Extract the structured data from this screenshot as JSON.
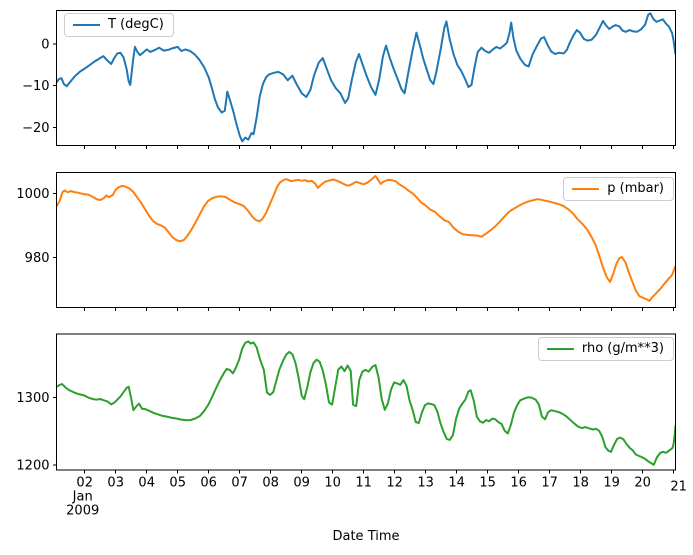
{
  "figure": {
    "background_color": "#ffffff",
    "xlabel": "Date Time"
  },
  "chart_data": {
    "type": "line",
    "title": "",
    "grid": false,
    "x_axis": {
      "label": "Date Time",
      "unit": "day of month, January 2009",
      "xlim": [
        1.09,
        21.06
      ],
      "ticks": [
        2,
        3,
        4,
        5,
        6,
        7,
        8,
        9,
        10,
        11,
        12,
        13,
        14,
        15,
        16,
        17,
        18,
        19,
        20,
        21
      ],
      "tick_labels": [
        "02",
        "03",
        "04",
        "05",
        "06",
        "07",
        "08",
        "09",
        "10",
        "11",
        "12",
        "13",
        "14",
        "15",
        "16",
        "17",
        "18",
        "19",
        "20",
        "21"
      ],
      "first_tick_sublabels": [
        "Jan",
        "2009"
      ]
    },
    "panels": [
      {
        "id": "temperature",
        "name": "T (degC)",
        "color": "#1f77b4",
        "legend_position": "upper left",
        "ylim": [
          -24.3,
          8.0
        ],
        "yticks": [
          0,
          -10,
          -20
        ],
        "ytick_labels": [
          "0",
          "−10",
          "−20"
        ],
        "x": [
          1.09,
          1.17,
          1.25,
          1.33,
          1.42,
          1.55,
          1.7,
          1.85,
          2.0,
          2.15,
          2.3,
          2.45,
          2.6,
          2.72,
          2.85,
          2.95,
          3.05,
          3.15,
          3.25,
          3.35,
          3.42,
          3.47,
          3.55,
          3.62,
          3.7,
          3.78,
          3.88,
          4.0,
          4.12,
          4.25,
          4.4,
          4.55,
          4.7,
          4.85,
          5.0,
          5.12,
          5.25,
          5.4,
          5.55,
          5.7,
          5.85,
          6.0,
          6.1,
          6.2,
          6.3,
          6.42,
          6.52,
          6.6,
          6.7,
          6.8,
          6.9,
          7.0,
          7.08,
          7.18,
          7.28,
          7.38,
          7.45,
          7.55,
          7.65,
          7.75,
          7.85,
          7.95,
          8.1,
          8.25,
          8.4,
          8.55,
          8.7,
          8.85,
          9.0,
          9.15,
          9.28,
          9.4,
          9.55,
          9.68,
          9.8,
          9.95,
          10.1,
          10.25,
          10.4,
          10.5,
          10.62,
          10.75,
          10.85,
          10.97,
          11.1,
          11.25,
          11.38,
          11.5,
          11.62,
          11.72,
          11.85,
          11.97,
          12.1,
          12.22,
          12.32,
          12.45,
          12.58,
          12.7,
          12.8,
          12.92,
          13.05,
          13.15,
          13.25,
          13.35,
          13.48,
          13.6,
          13.67,
          13.78,
          13.9,
          14.02,
          14.15,
          14.28,
          14.38,
          14.48,
          14.58,
          14.68,
          14.8,
          14.92,
          15.05,
          15.17,
          15.28,
          15.4,
          15.52,
          15.62,
          15.7,
          15.76,
          15.83,
          15.92,
          16.05,
          16.2,
          16.32,
          16.45,
          16.6,
          16.72,
          16.82,
          16.95,
          17.05,
          17.18,
          17.3,
          17.45,
          17.55,
          17.65,
          17.78,
          17.88,
          17.98,
          18.1,
          18.22,
          18.35,
          18.5,
          18.62,
          18.72,
          18.82,
          18.92,
          19.02,
          19.12,
          19.25,
          19.35,
          19.45,
          19.58,
          19.7,
          19.82,
          19.95,
          20.08,
          20.18,
          20.25,
          20.35,
          20.45,
          20.55,
          20.65,
          20.75,
          20.85,
          20.95,
          21.0,
          21.03,
          21.06
        ],
        "y": [
          -9.2,
          -8.4,
          -8.2,
          -9.6,
          -10.1,
          -8.9,
          -7.6,
          -6.6,
          -5.9,
          -5.1,
          -4.3,
          -3.6,
          -2.9,
          -3.9,
          -4.8,
          -3.4,
          -2.3,
          -2.1,
          -3.2,
          -6.0,
          -9.0,
          -9.8,
          -4.5,
          -0.7,
          -1.9,
          -2.7,
          -2.1,
          -1.3,
          -1.9,
          -1.5,
          -0.9,
          -1.6,
          -1.4,
          -1.0,
          -0.7,
          -1.7,
          -1.3,
          -1.7,
          -2.5,
          -3.8,
          -5.5,
          -8.0,
          -10.5,
          -13.2,
          -15.2,
          -16.4,
          -16.0,
          -11.4,
          -13.8,
          -16.3,
          -19.3,
          -21.9,
          -23.3,
          -22.4,
          -22.9,
          -21.3,
          -21.6,
          -17.5,
          -12.5,
          -9.6,
          -8.0,
          -7.3,
          -6.9,
          -6.7,
          -7.3,
          -8.7,
          -7.6,
          -9.8,
          -11.8,
          -12.7,
          -11.0,
          -7.5,
          -4.5,
          -3.4,
          -5.8,
          -8.7,
          -10.6,
          -11.8,
          -14.1,
          -13.0,
          -8.5,
          -4.3,
          -2.4,
          -5.0,
          -7.8,
          -10.5,
          -12.2,
          -8.5,
          -3.0,
          -0.4,
          -3.5,
          -6.0,
          -8.5,
          -10.8,
          -11.8,
          -6.5,
          -1.5,
          2.7,
          0.0,
          -3.5,
          -6.5,
          -8.7,
          -9.6,
          -6.5,
          -1.5,
          3.8,
          5.4,
          1.0,
          -2.5,
          -5.0,
          -6.5,
          -8.5,
          -10.3,
          -9.8,
          -5.5,
          -1.9,
          -0.9,
          -1.7,
          -2.1,
          -1.3,
          -0.7,
          -1.1,
          -0.4,
          0.3,
          2.5,
          5.1,
          1.5,
          -1.5,
          -3.5,
          -5.0,
          -5.4,
          -2.5,
          -0.3,
          1.3,
          1.6,
          -0.5,
          -1.8,
          -2.4,
          -2.1,
          -2.3,
          -1.5,
          0.3,
          2.2,
          3.3,
          2.7,
          1.2,
          0.8,
          1.0,
          2.2,
          4.0,
          5.5,
          4.4,
          3.6,
          4.1,
          4.5,
          4.2,
          3.2,
          2.9,
          3.3,
          3.0,
          2.9,
          3.5,
          4.6,
          7.0,
          7.3,
          5.9,
          5.3,
          5.6,
          5.9,
          4.9,
          4.1,
          2.6,
          0.8,
          -1.0,
          -2.4
        ]
      },
      {
        "id": "pressure",
        "name": "p (mbar)",
        "color": "#ff7f0e",
        "legend_position": "upper right",
        "ylim": [
          964.3,
          1006.5
        ],
        "yticks": [
          1000,
          980
        ],
        "ytick_labels": [
          "1000",
          "980"
        ],
        "x": [
          1.09,
          1.2,
          1.28,
          1.35,
          1.45,
          1.55,
          1.65,
          1.78,
          1.9,
          2.0,
          2.12,
          2.25,
          2.38,
          2.5,
          2.62,
          2.7,
          2.78,
          2.9,
          3.0,
          3.1,
          3.2,
          3.32,
          3.45,
          3.58,
          3.7,
          3.82,
          3.95,
          4.08,
          4.2,
          4.32,
          4.45,
          4.58,
          4.7,
          4.82,
          4.95,
          5.08,
          5.2,
          5.32,
          5.45,
          5.58,
          5.72,
          5.85,
          5.98,
          6.1,
          6.25,
          6.4,
          6.55,
          6.7,
          6.85,
          7.0,
          7.12,
          7.25,
          7.38,
          7.5,
          7.62,
          7.72,
          7.85,
          7.95,
          8.08,
          8.2,
          8.3,
          8.42,
          8.52,
          8.65,
          8.78,
          8.9,
          9.0,
          9.1,
          9.22,
          9.32,
          9.45,
          9.52,
          9.62,
          9.75,
          9.9,
          10.02,
          10.15,
          10.3,
          10.42,
          10.52,
          10.65,
          10.75,
          10.88,
          11.0,
          11.12,
          11.25,
          11.38,
          11.48,
          11.55,
          11.65,
          11.78,
          11.9,
          12.02,
          12.15,
          12.3,
          12.45,
          12.6,
          12.72,
          12.85,
          13.0,
          13.15,
          13.3,
          13.45,
          13.6,
          13.75,
          13.9,
          14.05,
          14.2,
          14.35,
          14.5,
          14.65,
          14.8,
          14.95,
          15.1,
          15.25,
          15.4,
          15.55,
          15.7,
          15.85,
          16.0,
          16.15,
          16.3,
          16.45,
          16.6,
          16.72,
          16.85,
          17.0,
          17.15,
          17.3,
          17.45,
          17.6,
          17.75,
          17.9,
          18.05,
          18.2,
          18.35,
          18.48,
          18.6,
          18.72,
          18.85,
          18.95,
          19.05,
          19.15,
          19.25,
          19.33,
          19.45,
          19.55,
          19.67,
          19.78,
          19.9,
          20.0,
          20.12,
          20.22,
          20.32,
          20.45,
          20.58,
          20.7,
          20.82,
          20.95,
          21.06
        ],
        "y": [
          995.8,
          997.8,
          1000.3,
          1000.9,
          1000.3,
          1000.7,
          1000.4,
          1000.2,
          999.9,
          999.7,
          999.6,
          998.9,
          998.2,
          997.9,
          998.5,
          999.3,
          998.8,
          999.4,
          1001.1,
          1001.9,
          1002.3,
          1002.1,
          1001.4,
          1000.3,
          998.6,
          997.1,
          995.0,
          992.9,
          991.4,
          990.5,
          990.0,
          989.3,
          987.9,
          986.4,
          985.4,
          985.0,
          985.4,
          986.8,
          988.7,
          991.0,
          993.6,
          995.9,
          997.6,
          998.4,
          998.9,
          999.1,
          998.8,
          997.9,
          997.1,
          996.6,
          996.1,
          994.8,
          993.0,
          991.8,
          991.2,
          991.8,
          993.8,
          996.1,
          999.0,
          1001.9,
          1003.4,
          1004.2,
          1004.4,
          1003.8,
          1004.0,
          1004.2,
          1003.9,
          1004.1,
          1003.7,
          1003.9,
          1002.9,
          1001.7,
          1002.6,
          1003.6,
          1004.0,
          1004.3,
          1003.9,
          1003.2,
          1002.6,
          1002.4,
          1003.0,
          1003.6,
          1003.2,
          1002.8,
          1003.3,
          1004.3,
          1005.4,
          1004.0,
          1002.9,
          1003.7,
          1004.2,
          1004.1,
          1003.8,
          1002.8,
          1001.9,
          1000.8,
          999.8,
          998.6,
          997.2,
          996.2,
          994.9,
          994.2,
          992.8,
          991.6,
          991.0,
          989.2,
          988.0,
          987.2,
          987.0,
          986.9,
          986.8,
          986.4,
          987.4,
          988.5,
          989.7,
          991.2,
          992.8,
          994.3,
          995.2,
          996.1,
          996.8,
          997.4,
          997.8,
          998.2,
          998.0,
          997.7,
          997.4,
          997.0,
          996.6,
          996.0,
          995.0,
          993.7,
          991.9,
          990.5,
          988.8,
          986.4,
          983.9,
          980.6,
          976.8,
          973.6,
          972.3,
          974.8,
          977.9,
          979.7,
          980.1,
          978.3,
          975.4,
          972.3,
          969.6,
          967.8,
          967.4,
          966.9,
          966.4,
          967.6,
          968.9,
          970.2,
          971.7,
          973.1,
          974.5,
          977.3
        ]
      },
      {
        "id": "density",
        "name": "rho (g/m**3)",
        "color": "#2ca02c",
        "legend_position": "upper right",
        "ylim": [
          1192.6,
          1393.5
        ],
        "yticks": [
          1300,
          1200
        ],
        "ytick_labels": [
          "1300",
          "1200"
        ],
        "x": [
          1.09,
          1.18,
          1.27,
          1.38,
          1.5,
          1.62,
          1.75,
          1.88,
          2.0,
          2.12,
          2.25,
          2.38,
          2.5,
          2.62,
          2.75,
          2.85,
          2.95,
          3.05,
          3.15,
          3.25,
          3.35,
          3.42,
          3.5,
          3.57,
          3.68,
          3.75,
          3.85,
          3.95,
          4.08,
          4.22,
          4.38,
          4.52,
          4.68,
          4.82,
          4.98,
          5.12,
          5.28,
          5.42,
          5.58,
          5.72,
          5.85,
          5.98,
          6.1,
          6.22,
          6.35,
          6.48,
          6.58,
          6.68,
          6.78,
          6.88,
          6.98,
          7.08,
          7.18,
          7.28,
          7.35,
          7.45,
          7.55,
          7.65,
          7.78,
          7.88,
          7.98,
          8.08,
          8.18,
          8.28,
          8.4,
          8.5,
          8.6,
          8.7,
          8.8,
          8.9,
          9.0,
          9.08,
          9.18,
          9.28,
          9.38,
          9.48,
          9.58,
          9.68,
          9.78,
          9.88,
          9.98,
          10.08,
          10.18,
          10.28,
          10.38,
          10.48,
          10.58,
          10.66,
          10.76,
          10.86,
          10.96,
          11.06,
          11.16,
          11.28,
          11.38,
          11.48,
          11.58,
          11.68,
          11.78,
          11.88,
          11.98,
          12.08,
          12.18,
          12.28,
          12.38,
          12.48,
          12.58,
          12.68,
          12.78,
          12.88,
          12.98,
          13.08,
          13.18,
          13.28,
          13.38,
          13.48,
          13.58,
          13.68,
          13.78,
          13.88,
          13.98,
          14.08,
          14.18,
          14.28,
          14.38,
          14.45,
          14.55,
          14.65,
          14.75,
          14.85,
          14.95,
          15.05,
          15.15,
          15.25,
          15.35,
          15.45,
          15.55,
          15.65,
          15.75,
          15.85,
          15.95,
          16.05,
          16.18,
          16.3,
          16.42,
          16.55,
          16.65,
          16.75,
          16.85,
          16.95,
          17.05,
          17.18,
          17.3,
          17.42,
          17.55,
          17.68,
          17.8,
          17.92,
          18.05,
          18.15,
          18.28,
          18.4,
          18.5,
          18.6,
          18.7,
          18.8,
          18.9,
          18.98,
          19.08,
          19.18,
          19.28,
          19.38,
          19.48,
          19.58,
          19.68,
          19.78,
          19.88,
          19.98,
          20.08,
          20.18,
          20.28,
          20.36,
          20.46,
          20.56,
          20.66,
          20.76,
          20.86,
          20.96,
          21.0,
          21.03,
          21.06
        ],
        "y": [
          1315.5,
          1318.0,
          1319.5,
          1314.5,
          1310.5,
          1308.0,
          1305.5,
          1304.0,
          1302.5,
          1299.5,
          1297.5,
          1296.5,
          1297.5,
          1295.5,
          1293.5,
          1289.5,
          1292.0,
          1296.5,
          1301.0,
          1307.5,
          1314.0,
          1315.5,
          1298.0,
          1281.0,
          1287.5,
          1290.5,
          1283.0,
          1282.5,
          1280.0,
          1277.0,
          1274.5,
          1272.5,
          1271.0,
          1269.5,
          1268.5,
          1267.0,
          1266.0,
          1266.5,
          1269.0,
          1272.5,
          1279.5,
          1288.5,
          1299.5,
          1311.5,
          1324.0,
          1335.0,
          1342.0,
          1340.5,
          1335.5,
          1344.0,
          1355.5,
          1372.0,
          1380.5,
          1382.5,
          1379.5,
          1381.0,
          1373.5,
          1357.0,
          1340.0,
          1307.0,
          1303.5,
          1307.5,
          1324.5,
          1341.0,
          1354.0,
          1363.0,
          1367.0,
          1363.5,
          1350.5,
          1329.0,
          1302.5,
          1297.0,
          1315.0,
          1337.0,
          1350.5,
          1355.5,
          1352.5,
          1339.5,
          1319.0,
          1292.5,
          1289.0,
          1315.0,
          1341.0,
          1345.5,
          1338.5,
          1347.0,
          1339.0,
          1289.0,
          1287.0,
          1325.5,
          1338.0,
          1340.5,
          1338.0,
          1345.0,
          1347.5,
          1329.0,
          1297.5,
          1281.5,
          1291.0,
          1311.0,
          1322.0,
          1320.5,
          1318.5,
          1325.5,
          1317.0,
          1295.0,
          1281.5,
          1263.5,
          1262.0,
          1277.5,
          1288.5,
          1291.0,
          1290.0,
          1288.5,
          1278.5,
          1261.5,
          1249.0,
          1238.5,
          1237.0,
          1244.0,
          1268.0,
          1283.0,
          1290.5,
          1296.5,
          1308.5,
          1310.5,
          1295.5,
          1271.5,
          1264.5,
          1262.5,
          1266.5,
          1264.5,
          1268.5,
          1267.5,
          1263.0,
          1260.5,
          1250.5,
          1246.5,
          1259.5,
          1277.5,
          1288.0,
          1295.5,
          1298.0,
          1300.0,
          1299.5,
          1296.5,
          1289.5,
          1271.5,
          1267.5,
          1278.0,
          1281.0,
          1279.5,
          1278.0,
          1275.5,
          1271.5,
          1266.0,
          1261.0,
          1256.5,
          1254.5,
          1256.0,
          1254.0,
          1252.5,
          1253.5,
          1250.5,
          1241.5,
          1226.5,
          1221.0,
          1219.5,
          1230.0,
          1238.5,
          1240.5,
          1238.0,
          1231.0,
          1225.5,
          1221.5,
          1215.5,
          1213.5,
          1211.5,
          1209.0,
          1205.5,
          1202.5,
          1200.5,
          1211.0,
          1217.5,
          1219.5,
          1218.0,
          1221.5,
          1225.0,
          1231.0,
          1243.0,
          1258.0
        ]
      }
    ]
  }
}
